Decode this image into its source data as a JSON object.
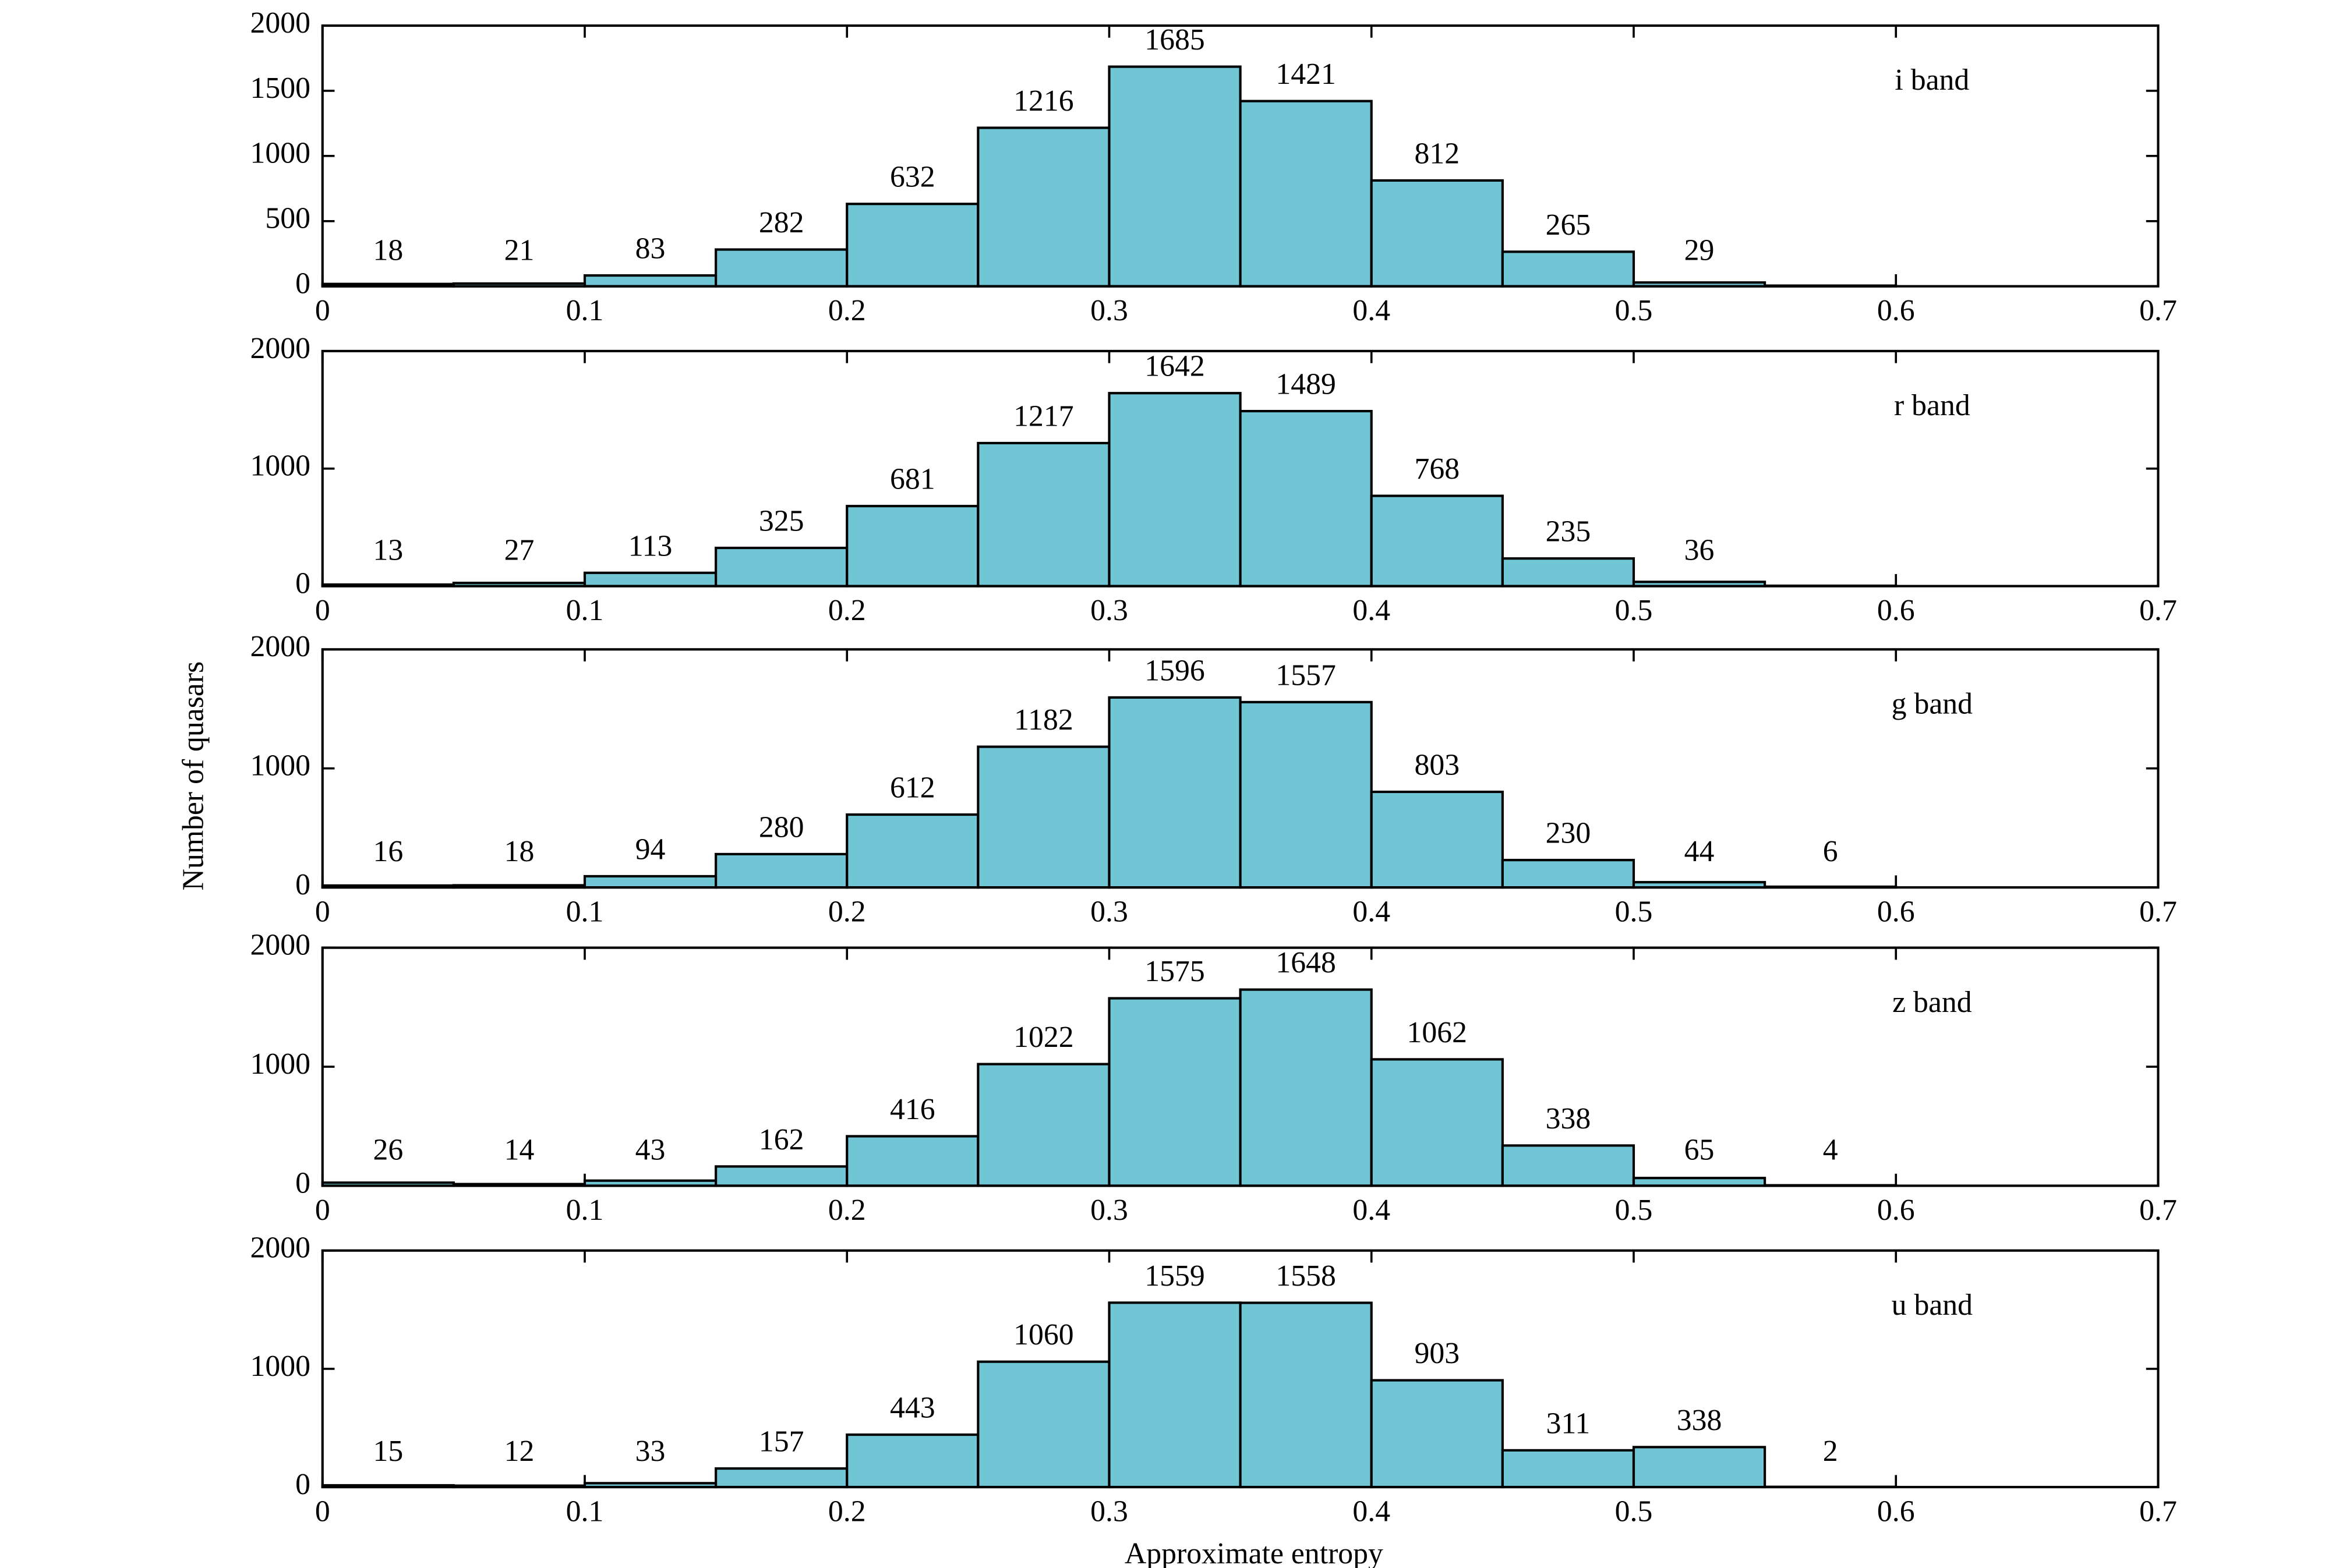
{
  "xlabel": "Approximate entropy",
  "ylabel": "Number of quasars",
  "chart_data": [
    {
      "type": "histogram",
      "annotation": "i band",
      "color": "#70c6d4",
      "bins": [
        0,
        0.05,
        0.1,
        0.15,
        0.2,
        0.25,
        0.3,
        0.35,
        0.4,
        0.45,
        0.5,
        0.55,
        0.6
      ],
      "values": [
        18,
        21,
        83,
        282,
        632,
        1216,
        1685,
        1421,
        812,
        265,
        29,
        5
      ],
      "value_labels": [
        "18",
        "21",
        "83",
        "282",
        "632",
        "1216",
        "1685",
        "1421",
        "812",
        "265",
        "29",
        null
      ],
      "xlim": [
        0,
        0.7
      ],
      "xticks": [
        0,
        0.1,
        0.2,
        0.3,
        0.4,
        0.5,
        0.6,
        0.7
      ],
      "ylim": [
        0,
        2000
      ],
      "yticks": [
        0,
        500,
        1000,
        1500,
        2000
      ]
    },
    {
      "type": "histogram",
      "annotation": "r band",
      "color": "#70c6d4",
      "bins": [
        0,
        0.05,
        0.1,
        0.15,
        0.2,
        0.25,
        0.3,
        0.35,
        0.4,
        0.45,
        0.5,
        0.55,
        0.6
      ],
      "values": [
        13,
        27,
        113,
        325,
        681,
        1217,
        1642,
        1489,
        768,
        235,
        36,
        3
      ],
      "value_labels": [
        "13",
        "27",
        "113",
        "325",
        "681",
        "1217",
        "1642",
        "1489",
        "768",
        "235",
        "36",
        null
      ],
      "xlim": [
        0,
        0.7
      ],
      "xticks": [
        0,
        0.1,
        0.2,
        0.3,
        0.4,
        0.5,
        0.6,
        0.7
      ],
      "ylim": [
        0,
        2000
      ],
      "yticks": [
        0,
        1000,
        2000
      ]
    },
    {
      "type": "histogram",
      "annotation": "g band",
      "color": "#70c6d4",
      "bins": [
        0,
        0.05,
        0.1,
        0.15,
        0.2,
        0.25,
        0.3,
        0.35,
        0.4,
        0.45,
        0.5,
        0.55,
        0.6
      ],
      "values": [
        16,
        18,
        94,
        280,
        612,
        1182,
        1596,
        1557,
        803,
        230,
        44,
        6
      ],
      "value_labels": [
        "16",
        "18",
        "94",
        "280",
        "612",
        "1182",
        "1596",
        "1557",
        "803",
        "230",
        "44",
        "6"
      ],
      "xlim": [
        0,
        0.7
      ],
      "xticks": [
        0,
        0.1,
        0.2,
        0.3,
        0.4,
        0.5,
        0.6,
        0.7
      ],
      "ylim": [
        0,
        2000
      ],
      "yticks": [
        0,
        1000,
        2000
      ]
    },
    {
      "type": "histogram",
      "annotation": "z band",
      "color": "#70c6d4",
      "bins": [
        0,
        0.05,
        0.1,
        0.15,
        0.2,
        0.25,
        0.3,
        0.35,
        0.4,
        0.45,
        0.5,
        0.55,
        0.6
      ],
      "values": [
        26,
        14,
        43,
        162,
        416,
        1022,
        1575,
        1648,
        1062,
        338,
        65,
        4
      ],
      "value_labels": [
        "26",
        "14",
        "43",
        "162",
        "416",
        "1022",
        "1575",
        "1648",
        "1062",
        "338",
        "65",
        "4"
      ],
      "xlim": [
        0,
        0.7
      ],
      "xticks": [
        0,
        0.1,
        0.2,
        0.3,
        0.4,
        0.5,
        0.6,
        0.7
      ],
      "ylim": [
        0,
        2000
      ],
      "yticks": [
        0,
        1000,
        2000
      ]
    },
    {
      "type": "histogram",
      "annotation": "u band",
      "color": "#70c6d4",
      "bins": [
        0,
        0.05,
        0.1,
        0.15,
        0.2,
        0.25,
        0.3,
        0.35,
        0.4,
        0.45,
        0.5,
        0.55,
        0.6
      ],
      "values": [
        15,
        12,
        33,
        157,
        443,
        1060,
        1559,
        1558,
        903,
        311,
        338,
        2
      ],
      "value_labels": [
        "15",
        "12",
        "33",
        "157",
        "443",
        "1060",
        "1559",
        "1558",
        "903",
        "311",
        "338",
        "2"
      ],
      "xlim": [
        0,
        0.7
      ],
      "xticks": [
        0,
        0.1,
        0.2,
        0.3,
        0.4,
        0.5,
        0.6,
        0.7
      ],
      "ylim": [
        0,
        2000
      ],
      "yticks": [
        0,
        1000,
        2000
      ]
    }
  ]
}
